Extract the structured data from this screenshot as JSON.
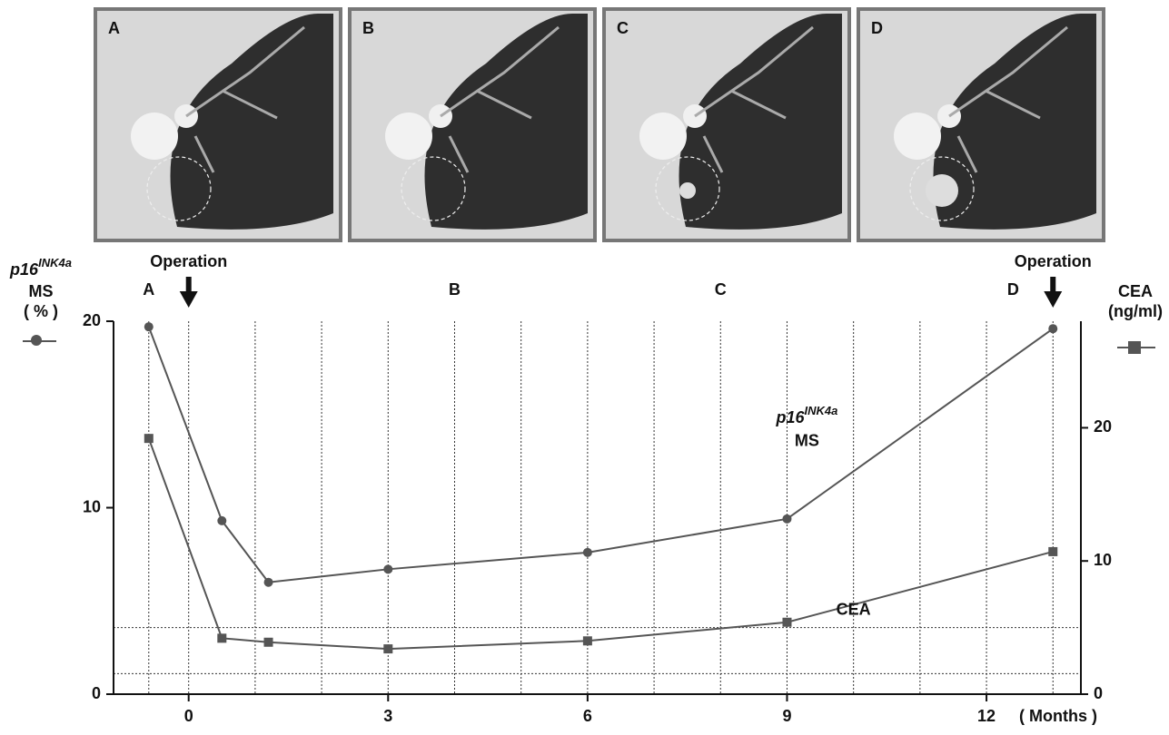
{
  "panels": [
    "A",
    "B",
    "C",
    "D"
  ],
  "chart_data": {
    "type": "line",
    "x_label": "( Months )",
    "y_label": {
      "gene": "p16",
      "superscript": "INK4a",
      "lines": [
        "MS",
        "( % )"
      ]
    },
    "y2_label": {
      "lines": [
        "CEA",
        "(ng/ml)"
      ]
    },
    "xlim": [
      -1.13,
      13.42
    ],
    "xticks": [
      0,
      3,
      6,
      9,
      12
    ],
    "x_grid": [
      -0.6,
      0,
      1,
      2,
      3,
      4,
      5,
      6,
      7,
      8,
      9,
      10,
      11,
      12,
      13
    ],
    "ylim": [
      0,
      20
    ],
    "yticks": [
      0,
      10,
      20
    ],
    "y2lim": [
      0,
      28
    ],
    "y2ticks": [
      0,
      10,
      20
    ],
    "reference_lines": [
      {
        "value": 5,
        "axis": "y2"
      },
      {
        "value": 1.1,
        "axis": "y"
      }
    ],
    "x": [
      -0.6,
      0.5,
      1.2,
      3,
      6,
      9,
      13
    ],
    "series": [
      {
        "label": {
          "gene": "p16",
          "superscript": "INK4a",
          "text": "MS"
        },
        "label_at": [
          9.3,
          14.8
        ],
        "color": "#555555",
        "marker": "circle",
        "values": [
          19.7,
          9.3,
          6.0,
          6.7,
          7.6,
          9.4,
          19.6
        ]
      },
      {
        "name": "CEA",
        "label_at": [
          10,
          6.3
        ],
        "color": "#555555",
        "marker": "square",
        "axis": "y2",
        "values": [
          19.2,
          4.2,
          3.9,
          3.4,
          4.0,
          5.4,
          10.7
        ]
      }
    ],
    "stages": [
      {
        "label": "A",
        "x": -0.6
      },
      {
        "label": "B",
        "x": 4
      },
      {
        "label": "C",
        "x": 8
      },
      {
        "label": "D",
        "x": 12.4
      }
    ],
    "operations": [
      {
        "text": "Operation",
        "x": 0
      },
      {
        "text": "Operation",
        "x": 13
      }
    ]
  }
}
